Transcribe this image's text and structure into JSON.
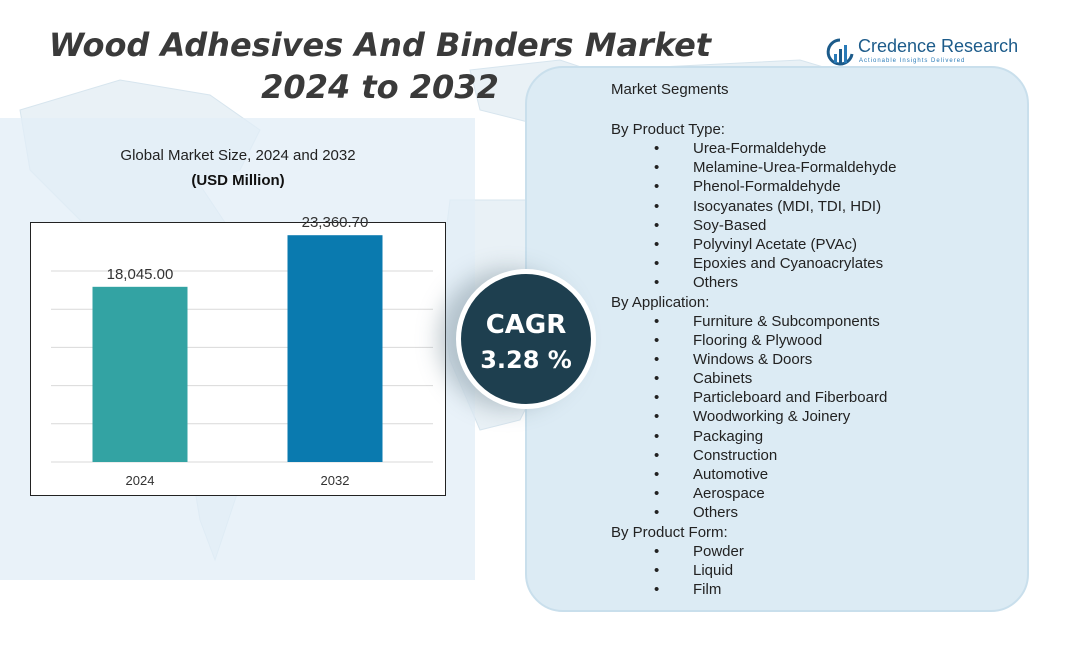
{
  "title_line1": "Wood Adhesives And Binders Market",
  "title_line2": "2024 to 2032",
  "logo": {
    "name": "Credence Research",
    "tagline": "Actionable Insights Delivered"
  },
  "chart_heading": "Global Market Size,  2024 and 2032",
  "chart_unit": "(USD Million)",
  "cagr": {
    "label": "CAGR",
    "value": "3.28 %"
  },
  "colors": {
    "bar_2024": "#33a3a3",
    "bar_2032": "#0a7aaf",
    "cagr_bg": "#1e3f4f",
    "panel": "#dcebf4"
  },
  "chart_data": {
    "type": "bar",
    "categories": [
      "2024",
      "2032"
    ],
    "values": [
      18045.0,
      23360.7
    ],
    "value_labels": [
      "18,045.00",
      "23,360.70"
    ],
    "title": "Global Market Size,  2024 and 2032",
    "ylabel": "(USD Million)",
    "ylim": [
      0,
      24000
    ],
    "grid": true
  },
  "segments": {
    "title": "Market Segments",
    "groups": [
      {
        "name": "By Product Type:",
        "items": [
          "Urea-Formaldehyde",
          "Melamine-Urea-Formaldehyde",
          "Phenol-Formaldehyde",
          "Isocyanates (MDI, TDI, HDI)",
          "Soy-Based",
          "Polyvinyl Acetate (PVAc)",
          "Epoxies and Cyanoacrylates",
          "Others"
        ]
      },
      {
        "name": "By Application:",
        "items": [
          "Furniture & Subcomponents",
          "Flooring & Plywood",
          "Windows & Doors",
          "Cabinets",
          "Particleboard and Fiberboard",
          "Woodworking & Joinery",
          "Packaging",
          "Construction",
          "Automotive",
          "Aerospace",
          "Others"
        ]
      },
      {
        "name": "By Product Form:",
        "items": [
          "Powder",
          "Liquid",
          "Film"
        ]
      }
    ]
  }
}
